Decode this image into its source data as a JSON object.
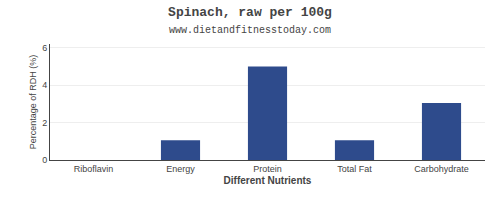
{
  "chart_data": {
    "type": "bar",
    "title": "Spinach, raw per 100g",
    "subtitle": "www.dietandfitnesstoday.com",
    "xlabel": "Different Nutrients",
    "ylabel": "Percentage of RDH (%)",
    "categories": [
      "Riboflavin",
      "Energy",
      "Protein",
      "Total Fat",
      "Carbohydrate"
    ],
    "values": [
      0,
      1.05,
      5.0,
      1.05,
      3.05
    ],
    "color": "#2e4b8c",
    "ylim": [
      0,
      6.2
    ],
    "yticks": [
      0,
      2,
      4,
      6
    ],
    "grid": true
  }
}
